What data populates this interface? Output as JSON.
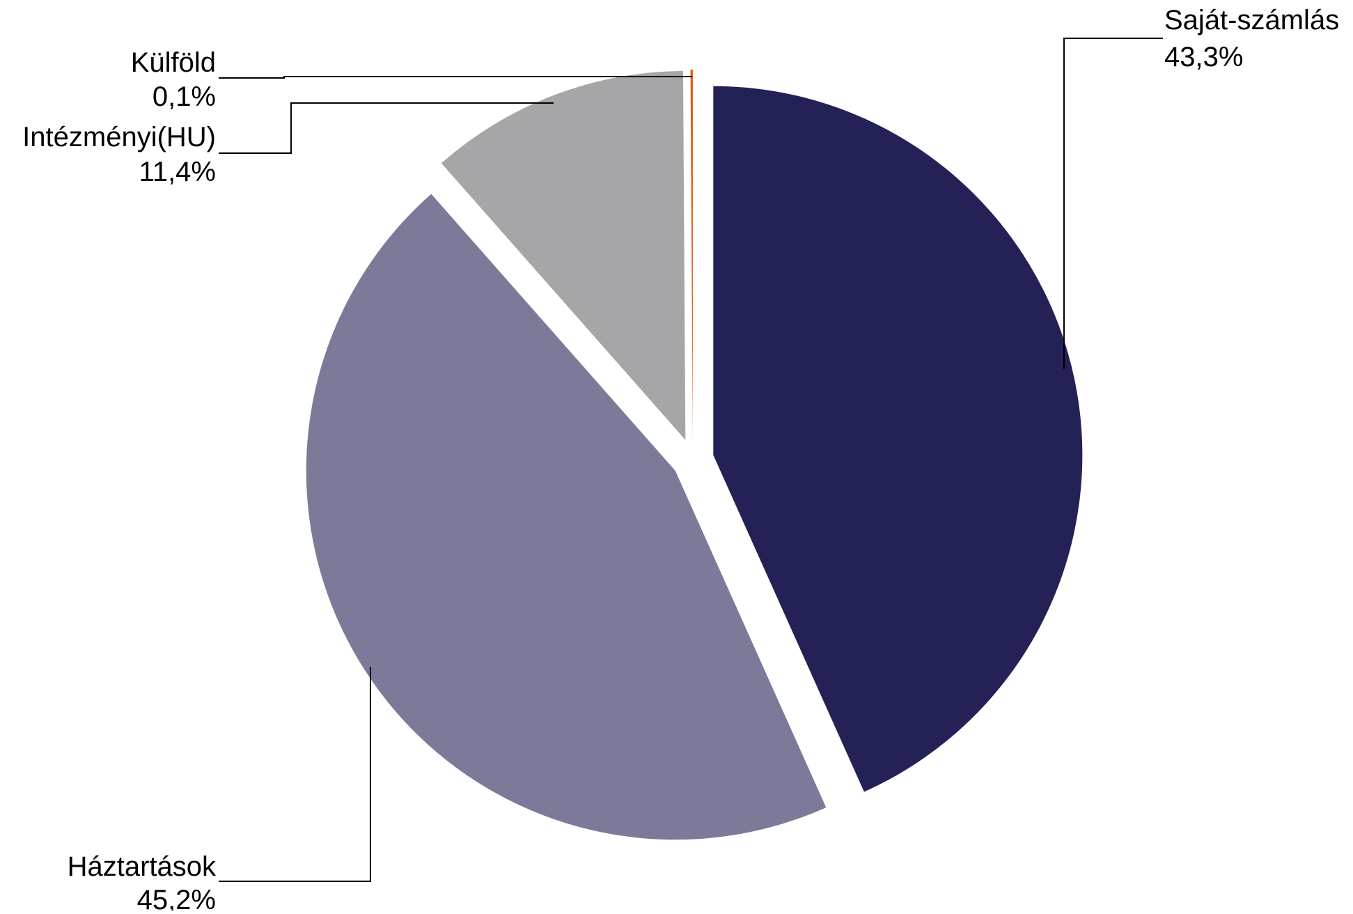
{
  "chart_data": {
    "type": "pie",
    "title": "",
    "slices": [
      {
        "label": "Saját-számlás",
        "value": 43.3,
        "value_label": "43,3%",
        "color": "#232156",
        "icon": "slice-saját-számlás"
      },
      {
        "label": "Háztartások",
        "value": 45.2,
        "value_label": "45,2%",
        "color": "#7b7b99",
        "icon": "slice-háztartások"
      },
      {
        "label": "Intézményi(HU)",
        "value": 11.4,
        "value_label": "11,4%",
        "color": "#a6a6a8",
        "icon": "slice-intézményi"
      },
      {
        "label": "Külföld",
        "value": 0.1,
        "value_label": "0,1%",
        "color": "#e05a0c",
        "icon": "slice-külföld"
      }
    ],
    "start_angle": "12 o'clock",
    "direction": "clockwise",
    "exploded": true,
    "legend": "none",
    "labels": "outside with leader lines"
  }
}
